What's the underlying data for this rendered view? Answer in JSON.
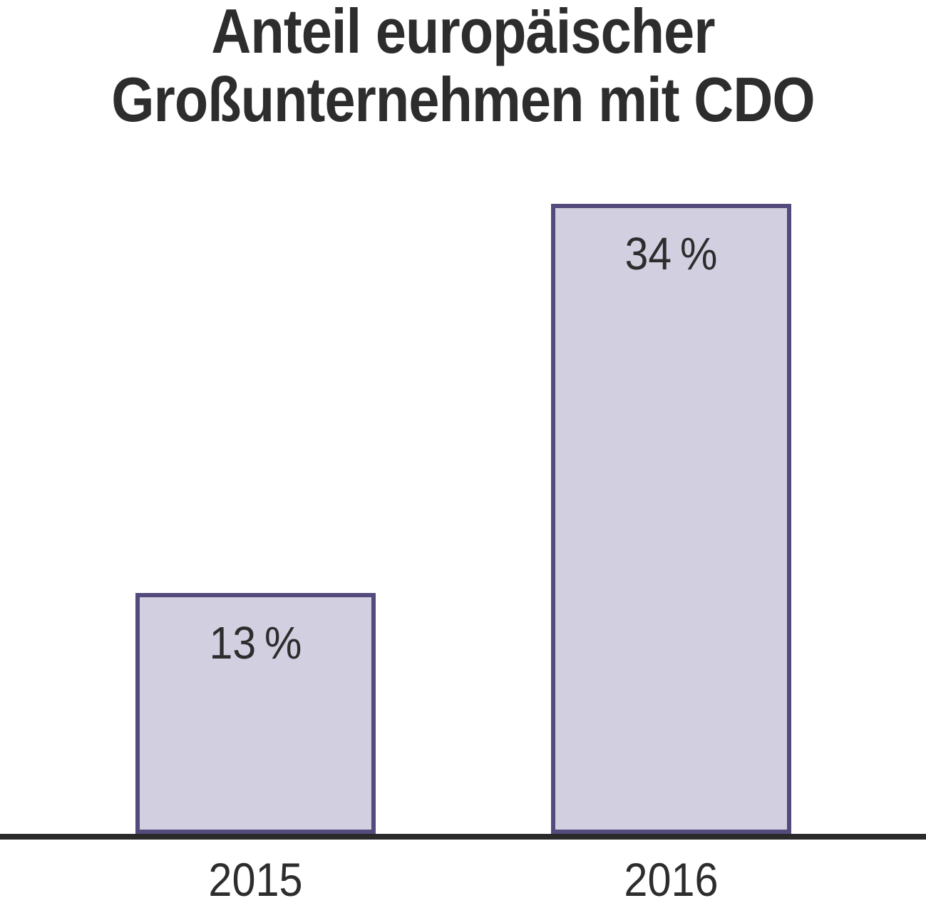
{
  "chart_data": {
    "type": "bar",
    "title": "Anteil europäischer Großunternehmen mit CDO",
    "title_lines": [
      "Anteil europäischer",
      "Großunternehmen mit CDO"
    ],
    "categories": [
      "2015",
      "2016"
    ],
    "values": [
      13,
      34
    ],
    "value_labels": [
      "13 %",
      "34 %"
    ],
    "unit": "%",
    "xlabel": "",
    "ylabel": "",
    "ylim": [
      0,
      34
    ],
    "grid": false,
    "legend_position": "none",
    "colors": {
      "bar_fill": "#d2cfe1",
      "bar_border": "#554a7c",
      "axis": "#2a2a2a",
      "text": "#2d2d2d"
    }
  }
}
